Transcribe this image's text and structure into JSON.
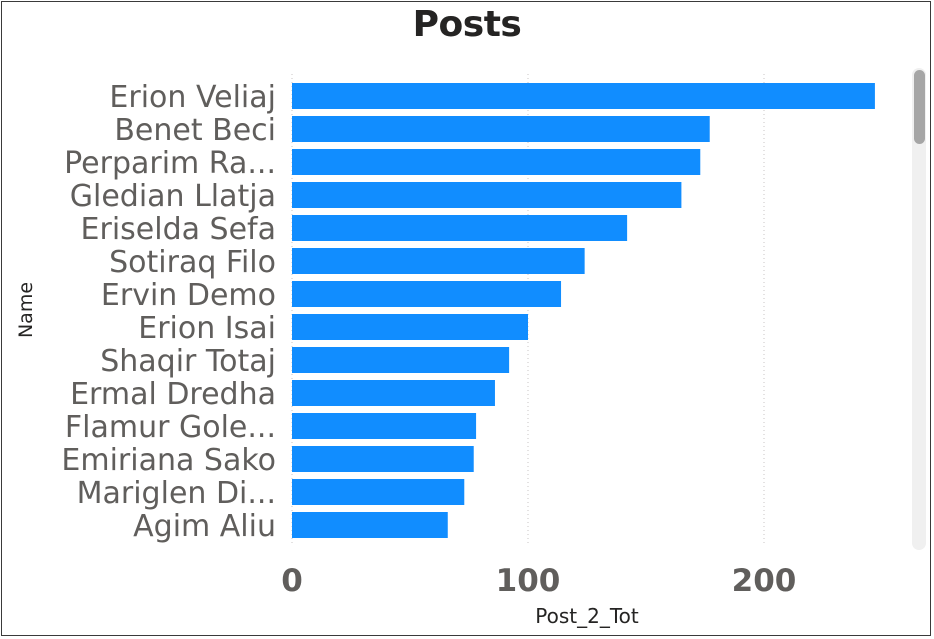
{
  "chart_data": {
    "type": "bar",
    "orientation": "horizontal",
    "title": "Posts",
    "xlabel": "Post_2_Tot",
    "ylabel": "Name",
    "categories": [
      "Erion Veliaj",
      "Benet Beci",
      "Perparim Ra...",
      "Gledian Llatja",
      "Eriselda Sefa",
      "Sotiraq Filo",
      "Ervin Demo",
      "Erion Isai",
      "Shaqir Totaj",
      "Ermal Dredha",
      "Flamur Gole...",
      "Emiriana Sako",
      "Mariglen Di...",
      "Agim Aliu"
    ],
    "values": [
      247,
      177,
      173,
      165,
      142,
      124,
      114,
      100,
      92,
      86,
      78,
      77,
      73,
      66
    ],
    "xlim": [
      0,
      260
    ],
    "xticks": [
      0,
      100,
      200
    ],
    "grid": "vertical dotted",
    "bar_color": "#118DFF",
    "scrollbar": true
  }
}
